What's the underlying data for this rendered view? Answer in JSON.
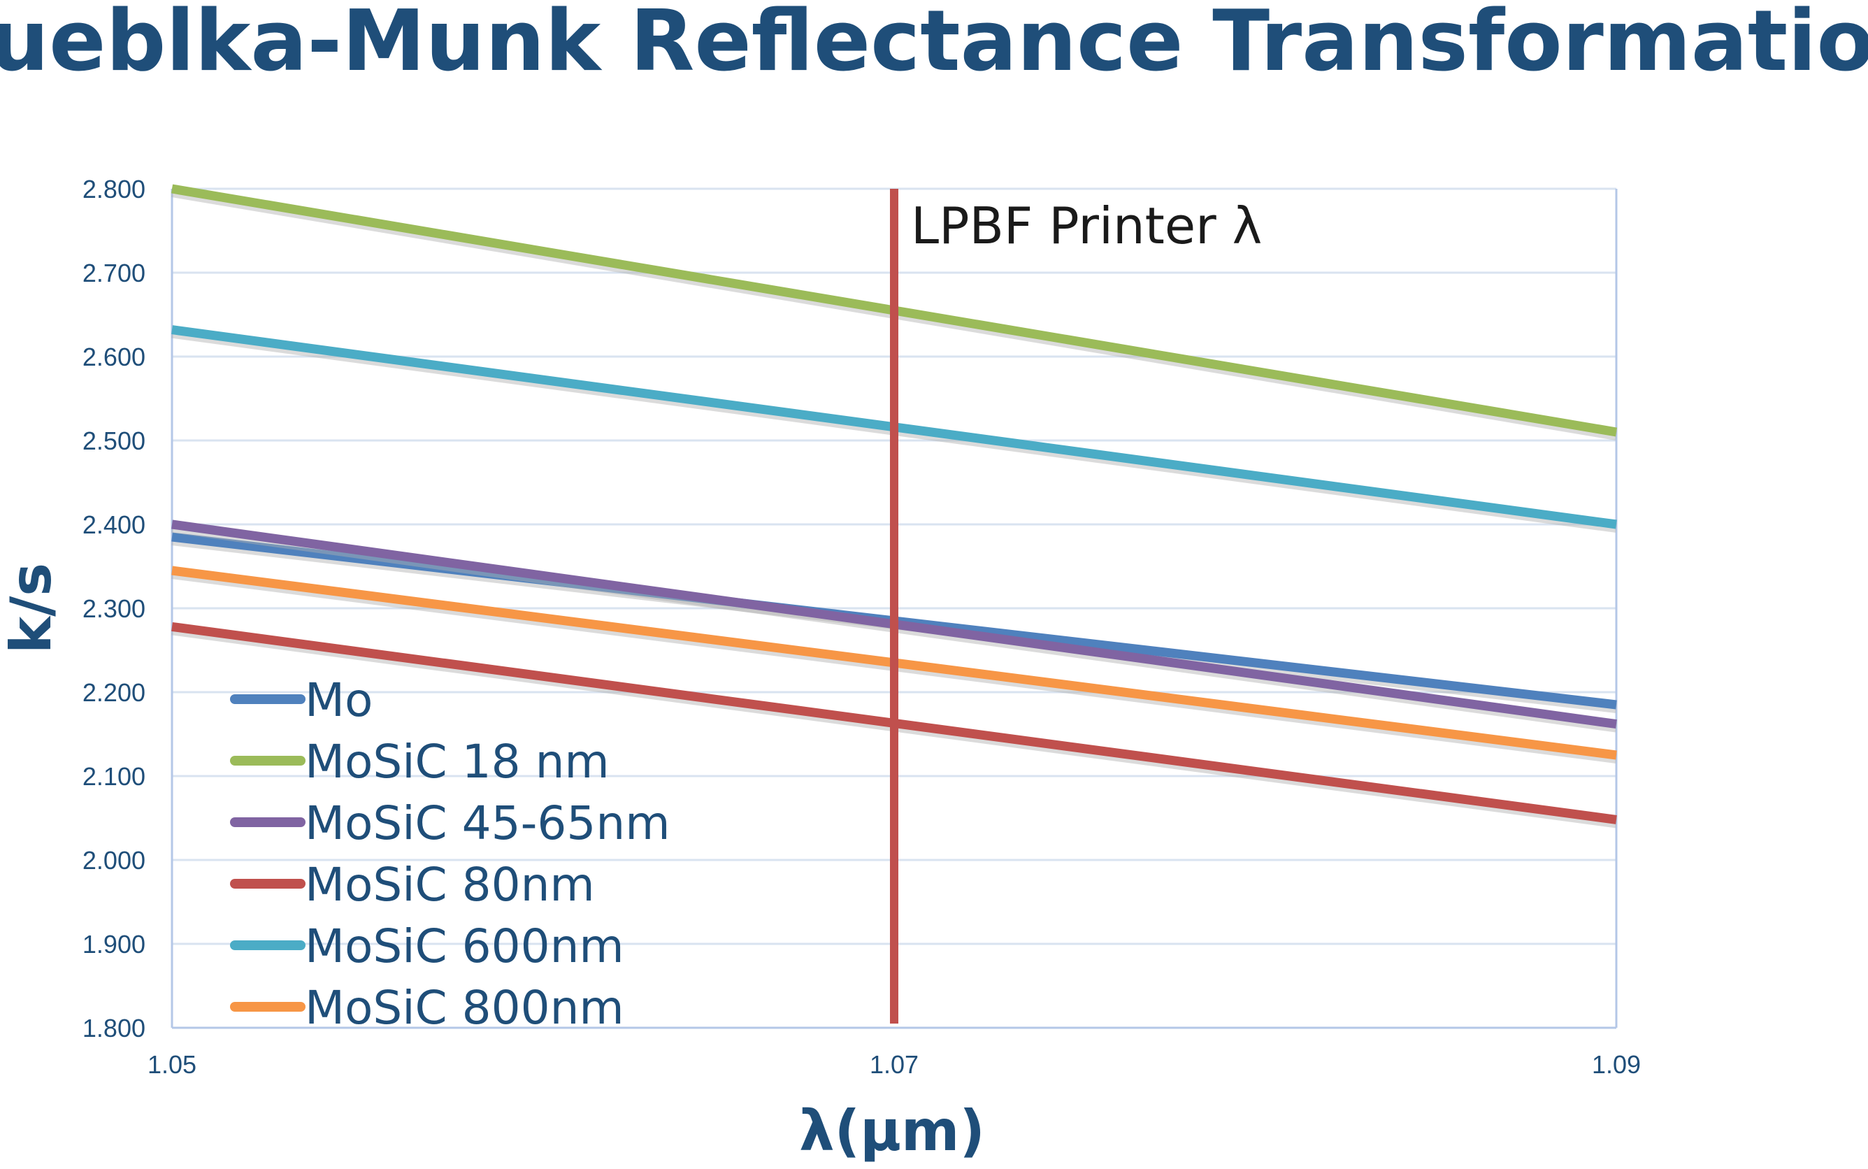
{
  "chart_data": {
    "type": "line",
    "title": "Kueblka-Munk Reflectance Transformation",
    "xlabel": "λ(μm)",
    "ylabel": "k/s",
    "x": [
      1.05,
      1.09
    ],
    "xticks": [
      "1.05",
      "1.07",
      "1.09"
    ],
    "xlim": [
      1.05,
      1.09
    ],
    "ylim": [
      1.8,
      2.8
    ],
    "yticks": [
      "1.800",
      "1.900",
      "2.000",
      "2.100",
      "2.200",
      "2.300",
      "2.400",
      "2.500",
      "2.600",
      "2.700",
      "2.800"
    ],
    "grid": "horizontal",
    "legend_position": "bottom-left",
    "series": [
      {
        "name": "Mo",
        "values": [
          2.385,
          2.185
        ],
        "color": "#4f81bd"
      },
      {
        "name": "MoSiC 18 nm",
        "values": [
          2.8,
          2.51
        ],
        "color": "#9bbb59"
      },
      {
        "name": "MoSiC 45-65nm",
        "values": [
          2.4,
          2.162
        ],
        "color": "#8064a2"
      },
      {
        "name": "MoSiC 80nm",
        "values": [
          2.278,
          2.048
        ],
        "color": "#c0504d"
      },
      {
        "name": "MoSiC 600nm",
        "values": [
          2.632,
          2.4
        ],
        "color": "#4bacc6"
      },
      {
        "name": "MoSiC 800nm",
        "values": [
          2.345,
          2.125
        ],
        "color": "#f79646"
      }
    ],
    "annotation": {
      "text": "LPBF Printer λ",
      "x": 1.07,
      "color": "#c0504d"
    },
    "colors": {
      "title": "#1f4e79",
      "axis_text": "#1f4e79",
      "grid": "#d9e3f0",
      "axis_line": "#b4c7e7"
    }
  }
}
